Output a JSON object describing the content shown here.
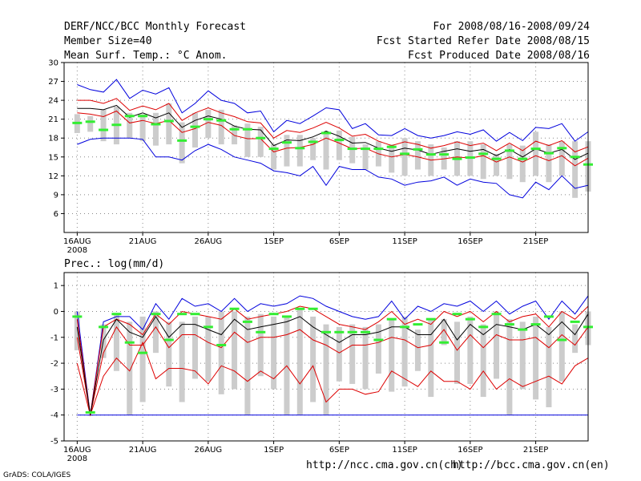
{
  "header": {
    "title": "DERF/NCC/BCC Monthly Forecast",
    "member_size": "Member Size=40",
    "variable": "Mean Surf. Temp.: °C Anom.",
    "period": "For 2008/08/16-2008/09/24",
    "started": "Fcst Started Refer Date 2008/08/15",
    "produced": "Fcst Produced Date 2008/08/16"
  },
  "footer": {
    "ncc_url": "http://ncc.cma.gov.cn(ch)",
    "bcc_url": "http://bcc.cma.gov.cn(en)",
    "grads_credit": "GrADS: COLA/IGES"
  },
  "colors": {
    "max_line": "#0000dd",
    "spread_line": "#dd0000",
    "mean_line": "#000000",
    "box": "#cccccc",
    "observed": "#33ee33",
    "grid": "#888888"
  },
  "x_axis": {
    "tick_days": [
      1,
      6,
      11,
      16,
      21,
      26,
      31,
      36
    ],
    "tick_labels": [
      "16AUG",
      "21AUG",
      "26AUG",
      "1SEP",
      "6SEP",
      "11SEP",
      "16SEP",
      "21SEP"
    ],
    "year_label": "2008"
  },
  "chart_data": [
    {
      "type": "box-line",
      "title": "Mean Surf. Temp.: °C Anom.",
      "xlabel": "",
      "ylabel": "",
      "xlim": [
        0,
        40
      ],
      "ylim": [
        3,
        30
      ],
      "yticks": [
        6,
        9,
        12,
        15,
        18,
        21,
        24,
        27,
        30
      ],
      "grid": true,
      "days": [
        1,
        2,
        3,
        4,
        5,
        6,
        7,
        8,
        9,
        10,
        11,
        12,
        13,
        14,
        15,
        16,
        17,
        18,
        19,
        20,
        21,
        22,
        23,
        24,
        25,
        26,
        27,
        28,
        29,
        30,
        31,
        32,
        33,
        34,
        35,
        36,
        37,
        38,
        39,
        40
      ],
      "max": [
        26.5,
        25.7,
        25.3,
        27.3,
        24.3,
        25.6,
        25.0,
        26.0,
        22.0,
        23.5,
        25.5,
        24.0,
        23.5,
        22.0,
        22.3,
        19.0,
        20.8,
        20.3,
        21.5,
        22.8,
        22.5,
        19.5,
        20.3,
        18.5,
        18.4,
        19.5,
        18.4,
        18.0,
        18.4,
        19.0,
        18.6,
        19.3,
        17.5,
        18.9,
        17.6,
        19.7,
        19.5,
        20.3,
        17.5,
        19.0
      ],
      "spread_upper": [
        24.0,
        24.0,
        23.5,
        24.3,
        22.4,
        23.1,
        22.5,
        23.5,
        20.8,
        22.0,
        22.8,
        22.0,
        21.4,
        20.6,
        20.4,
        18.0,
        19.2,
        18.9,
        19.6,
        20.5,
        19.6,
        18.3,
        18.6,
        17.5,
        16.8,
        17.4,
        17.0,
        16.4,
        16.8,
        17.4,
        16.8,
        17.2,
        16.0,
        17.2,
        16.0,
        17.5,
        16.8,
        17.6,
        15.8,
        16.6
      ],
      "mean": [
        22.7,
        22.7,
        22.5,
        23.2,
        21.3,
        22.0,
        21.2,
        22.0,
        19.7,
        20.8,
        21.5,
        21.0,
        19.9,
        19.4,
        19.3,
        16.8,
        17.7,
        17.6,
        18.2,
        19.1,
        18.3,
        17.2,
        17.3,
        16.4,
        15.9,
        16.4,
        16.1,
        15.4,
        15.9,
        16.3,
        15.9,
        16.2,
        15.2,
        16.2,
        15.0,
        16.3,
        15.6,
        16.2,
        14.6,
        15.6
      ],
      "spread_lower": [
        22.0,
        21.8,
        21.4,
        22.3,
        20.4,
        20.8,
        20.3,
        20.8,
        18.9,
        19.5,
        20.5,
        20.0,
        18.4,
        17.9,
        17.9,
        15.8,
        16.4,
        16.5,
        17.0,
        18.0,
        17.2,
        16.3,
        16.4,
        15.5,
        15.0,
        15.4,
        15.0,
        14.5,
        14.7,
        15.0,
        14.8,
        15.2,
        14.2,
        15.0,
        14.2,
        15.2,
        14.4,
        15.2,
        13.6,
        14.8
      ],
      "min": [
        17.0,
        17.8,
        18.0,
        18.0,
        18.0,
        17.8,
        15.0,
        15.0,
        14.5,
        16.0,
        17.0,
        16.2,
        15.0,
        14.5,
        14.0,
        12.8,
        12.5,
        12.0,
        13.5,
        10.5,
        13.5,
        13.0,
        13.0,
        11.8,
        11.5,
        10.5,
        11.0,
        11.2,
        11.8,
        10.5,
        11.5,
        11.0,
        10.8,
        9.0,
        8.5,
        11.0,
        9.8,
        12.0,
        10.0,
        10.5
      ],
      "box_top": [
        21.8,
        21.5,
        22.5,
        23.0,
        22.0,
        21.8,
        22.0,
        23.5,
        20.5,
        22.0,
        22.5,
        22.5,
        20.0,
        20.3,
        19.8,
        17.0,
        18.5,
        18.5,
        18.0,
        19.0,
        19.2,
        18.2,
        17.0,
        17.5,
        17.0,
        18.0,
        17.5,
        17.0,
        16.5,
        17.5,
        17.5,
        17.0,
        15.5,
        17.0,
        16.8,
        19.0,
        17.0,
        17.5,
        17.5,
        17.5
      ],
      "box_bottom": [
        18.8,
        19.0,
        17.5,
        17.0,
        18.0,
        17.5,
        16.8,
        17.0,
        14.0,
        16.5,
        18.0,
        17.0,
        17.0,
        15.0,
        15.0,
        13.0,
        13.5,
        13.5,
        14.5,
        13.0,
        14.5,
        14.0,
        13.0,
        13.5,
        12.5,
        12.0,
        13.0,
        12.0,
        13.0,
        12.0,
        12.0,
        11.5,
        12.0,
        11.5,
        11.0,
        12.0,
        11.0,
        12.0,
        8.5,
        9.5
      ],
      "observed": [
        20.4,
        20.6,
        19.3,
        20.1,
        21.5,
        21.5,
        20.2,
        20.7,
        17.6,
        19.8,
        21.0,
        20.8,
        19.4,
        19.4,
        18.0,
        16.3,
        17.3,
        16.4,
        17.4,
        18.8,
        17.7,
        16.3,
        16.3,
        16.3,
        16.6,
        15.5,
        16.2,
        15.4,
        15.4,
        14.7,
        14.9,
        15.5,
        14.7,
        16.0,
        14.7,
        16.3,
        15.6,
        16.4,
        15.0,
        13.8
      ]
    },
    {
      "type": "box-line",
      "title": "Prec.: log(mm/d)",
      "xlabel": "",
      "ylabel": "",
      "xlim": [
        0,
        40
      ],
      "ylim": [
        -5,
        1.5
      ],
      "yticks": [
        -5,
        -4,
        -3,
        -2,
        -1,
        0,
        1
      ],
      "grid": true,
      "days": [
        1,
        2,
        3,
        4,
        5,
        6,
        7,
        8,
        9,
        10,
        11,
        12,
        13,
        14,
        15,
        16,
        17,
        18,
        19,
        20,
        21,
        22,
        23,
        24,
        25,
        26,
        27,
        28,
        29,
        30,
        31,
        32,
        33,
        34,
        35,
        36,
        37,
        38,
        39,
        40
      ],
      "max": [
        0.0,
        -4.0,
        -0.4,
        -0.2,
        -0.2,
        -0.7,
        0.3,
        -0.3,
        0.5,
        0.2,
        0.3,
        0.0,
        0.5,
        0.0,
        0.3,
        0.2,
        0.3,
        0.6,
        0.5,
        0.2,
        0.0,
        -0.2,
        -0.3,
        -0.2,
        0.4,
        -0.3,
        0.2,
        0.0,
        0.3,
        0.2,
        0.4,
        0.0,
        0.4,
        -0.1,
        0.2,
        0.4,
        -0.3,
        0.4,
        -0.1,
        0.6
      ],
      "spread_upper": [
        -0.3,
        -4.0,
        -0.6,
        -0.3,
        -0.5,
        -0.9,
        -0.1,
        -0.5,
        0.0,
        -0.1,
        -0.2,
        -0.3,
        0.1,
        -0.3,
        -0.2,
        -0.1,
        0.0,
        0.2,
        0.1,
        -0.2,
        -0.5,
        -0.6,
        -0.7,
        -0.4,
        0.0,
        -0.5,
        -0.3,
        -0.5,
        0.0,
        -0.2,
        0.0,
        -0.4,
        0.0,
        -0.4,
        -0.2,
        -0.1,
        -0.6,
        0.0,
        -0.3,
        0.2
      ],
      "mean": [
        -0.6,
        -4.0,
        -1.1,
        -0.3,
        -0.8,
        -1.0,
        -0.2,
        -1.0,
        -0.5,
        -0.5,
        -0.7,
        -0.9,
        -0.3,
        -0.7,
        -0.6,
        -0.5,
        -0.4,
        -0.2,
        -0.6,
        -0.9,
        -1.2,
        -0.9,
        -0.9,
        -0.8,
        -0.6,
        -0.6,
        -0.9,
        -0.9,
        -0.3,
        -1.1,
        -0.5,
        -0.9,
        -0.5,
        -0.6,
        -0.7,
        -0.5,
        -0.9,
        -0.4,
        -0.9,
        -0.1
      ],
      "spread_lower": [
        -1.0,
        -4.0,
        -1.6,
        -0.6,
        -1.3,
        -1.3,
        -0.6,
        -1.4,
        -0.9,
        -0.9,
        -1.2,
        -1.4,
        -0.8,
        -1.2,
        -1.0,
        -1.0,
        -0.9,
        -0.7,
        -1.1,
        -1.3,
        -1.6,
        -1.3,
        -1.3,
        -1.2,
        -1.0,
        -1.1,
        -1.4,
        -1.3,
        -0.7,
        -1.5,
        -0.9,
        -1.4,
        -0.9,
        -1.1,
        -1.1,
        -1.0,
        -1.4,
        -0.9,
        -1.3,
        -0.6
      ],
      "lower_bound": [
        -2.0,
        -4.0,
        -2.5,
        -1.8,
        -2.3,
        -1.2,
        -2.6,
        -2.2,
        -2.2,
        -2.3,
        -2.8,
        -2.1,
        -2.3,
        -2.7,
        -2.3,
        -2.6,
        -2.1,
        -2.8,
        -2.1,
        -3.5,
        -3.0,
        -3.0,
        -3.2,
        -3.1,
        -2.3,
        -2.6,
        -2.9,
        -2.3,
        -2.7,
        -2.7,
        -3.0,
        -2.3,
        -3.0,
        -2.6,
        -2.9,
        -2.7,
        -2.5,
        -2.8,
        -2.1,
        -1.8
      ],
      "min": [
        -4.0,
        -4.0,
        -4.0,
        -4.0,
        -4.0,
        -4.0,
        -4.0,
        -4.0,
        -4.0,
        -4.0,
        -4.0,
        -4.0,
        -4.0,
        -4.0,
        -4.0,
        -4.0,
        -4.0,
        -4.0,
        -4.0,
        -4.0,
        -4.0,
        -4.0,
        -4.0,
        -4.0,
        -4.0,
        -4.0,
        -4.0,
        -4.0,
        -4.0,
        -4.0,
        -4.0,
        -4.0,
        -4.0,
        -4.0,
        -4.0,
        -4.0,
        -4.0,
        -4.0,
        -4.0,
        -4.0
      ],
      "box_top": [
        0.0,
        -4.0,
        -0.5,
        -0.1,
        -0.4,
        -0.2,
        0.0,
        -0.4,
        -0.4,
        -0.2,
        -0.2,
        0.0,
        0.0,
        -0.2,
        -0.1,
        -0.2,
        -0.2,
        0.1,
        -0.2,
        -0.5,
        -0.6,
        -0.5,
        -0.6,
        -0.5,
        -0.3,
        -0.2,
        -0.7,
        -0.3,
        -0.3,
        -0.4,
        -0.2,
        -0.5,
        0.0,
        -0.3,
        -0.4,
        -0.2,
        -0.6,
        0.0,
        -0.5,
        0.0
      ],
      "box_bottom": [
        -1.5,
        -4.0,
        -1.8,
        -2.3,
        -4.0,
        -3.5,
        -1.6,
        -2.9,
        -3.5,
        -2.6,
        -2.7,
        -3.2,
        -3.0,
        -4.0,
        -2.5,
        -3.0,
        -4.0,
        -4.0,
        -3.5,
        -4.0,
        -2.7,
        -2.8,
        -3.0,
        -2.4,
        -3.1,
        -2.9,
        -2.3,
        -3.3,
        -1.3,
        -2.8,
        -2.8,
        -3.3,
        -2.6,
        -4.0,
        -3.0,
        -3.4,
        -3.7,
        -2.7,
        -1.6,
        -1.3
      ],
      "observed": [
        -0.2,
        -3.9,
        -0.6,
        -0.1,
        -1.2,
        -1.6,
        -0.1,
        -1.1,
        -0.1,
        -0.1,
        -0.6,
        -1.3,
        0.1,
        -0.4,
        -0.8,
        -0.1,
        -0.2,
        0.1,
        0.1,
        -0.8,
        -0.8,
        -0.8,
        -0.8,
        -1.1,
        -0.3,
        -0.6,
        -0.5,
        -0.3,
        -1.2,
        -0.1,
        -0.3,
        -0.6,
        -0.1,
        -0.5,
        -0.7,
        -0.5,
        -0.2,
        -1.1,
        -0.4,
        -0.6
      ]
    }
  ]
}
